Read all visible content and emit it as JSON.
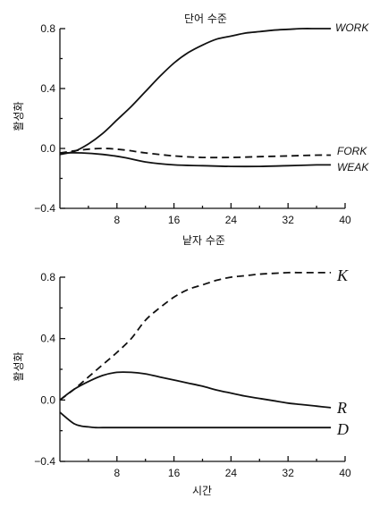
{
  "chart_data": [
    {
      "type": "line",
      "title": "단어 수준",
      "xlabel": "낱자 수준",
      "ylabel": "활성화",
      "xlim": [
        0,
        40
      ],
      "ylim": [
        -0.4,
        0.8
      ],
      "xticks": [
        8,
        16,
        24,
        32,
        40
      ],
      "yticks": [
        -0.4,
        0.0,
        0.4,
        0.8
      ],
      "ytick_labels": [
        "−0.4",
        "0.0",
        "0.4",
        "0.8"
      ],
      "series": [
        {
          "name": "WORK",
          "style": "solid",
          "x": [
            0,
            2,
            4,
            6,
            8,
            10,
            12,
            14,
            16,
            18,
            20,
            22,
            24,
            26,
            28,
            30,
            32,
            34,
            36,
            38
          ],
          "y": [
            -0.04,
            -0.02,
            0.03,
            0.1,
            0.19,
            0.28,
            0.38,
            0.48,
            0.57,
            0.64,
            0.69,
            0.73,
            0.75,
            0.77,
            0.78,
            0.79,
            0.795,
            0.8,
            0.8,
            0.8
          ]
        },
        {
          "name": "FORK",
          "style": "dashed",
          "x": [
            0,
            3,
            6,
            9,
            12,
            16,
            20,
            24,
            28,
            32,
            36,
            38
          ],
          "y": [
            -0.03,
            -0.01,
            0.0,
            -0.01,
            -0.03,
            -0.05,
            -0.06,
            -0.06,
            -0.055,
            -0.05,
            -0.045,
            -0.045
          ]
        },
        {
          "name": "WEAK",
          "style": "solid",
          "x": [
            0,
            3,
            6,
            9,
            12,
            16,
            20,
            24,
            28,
            32,
            36,
            38
          ],
          "y": [
            -0.03,
            -0.03,
            -0.04,
            -0.06,
            -0.09,
            -0.11,
            -0.115,
            -0.12,
            -0.12,
            -0.115,
            -0.11,
            -0.11
          ]
        }
      ]
    },
    {
      "type": "line",
      "title": "",
      "xlabel": "시간",
      "ylabel": "활성화",
      "xlim": [
        0,
        40
      ],
      "ylim": [
        -0.4,
        0.8
      ],
      "xticks": [
        8,
        16,
        24,
        32,
        40
      ],
      "yticks": [
        -0.4,
        0.0,
        0.4,
        0.8
      ],
      "ytick_labels": [
        "−0.4",
        "0.0",
        "0.4",
        "0.8"
      ],
      "series": [
        {
          "name": "K",
          "style": "dashed",
          "x": [
            0,
            2,
            4,
            6,
            8,
            10,
            12,
            14,
            16,
            18,
            20,
            22,
            24,
            26,
            28,
            30,
            32,
            34,
            36,
            38
          ],
          "y": [
            0.0,
            0.07,
            0.15,
            0.23,
            0.31,
            0.4,
            0.52,
            0.6,
            0.67,
            0.72,
            0.75,
            0.78,
            0.8,
            0.81,
            0.82,
            0.825,
            0.83,
            0.83,
            0.83,
            0.83
          ]
        },
        {
          "name": "R",
          "style": "solid",
          "x": [
            0,
            2,
            4,
            6,
            8,
            10,
            12,
            14,
            16,
            18,
            20,
            22,
            24,
            26,
            28,
            30,
            32,
            34,
            36,
            38
          ],
          "y": [
            0.0,
            0.07,
            0.12,
            0.16,
            0.18,
            0.18,
            0.17,
            0.15,
            0.13,
            0.11,
            0.09,
            0.065,
            0.045,
            0.025,
            0.01,
            -0.005,
            -0.02,
            -0.03,
            -0.04,
            -0.05
          ]
        },
        {
          "name": "D",
          "style": "solid",
          "x": [
            0,
            1,
            2,
            3,
            4,
            5,
            6,
            8,
            12,
            16,
            20,
            24,
            28,
            32,
            36,
            38
          ],
          "y": [
            -0.08,
            -0.12,
            -0.155,
            -0.17,
            -0.175,
            -0.18,
            -0.18,
            -0.18,
            -0.18,
            -0.18,
            -0.18,
            -0.18,
            -0.18,
            -0.18,
            -0.18,
            -0.18
          ]
        }
      ]
    }
  ]
}
